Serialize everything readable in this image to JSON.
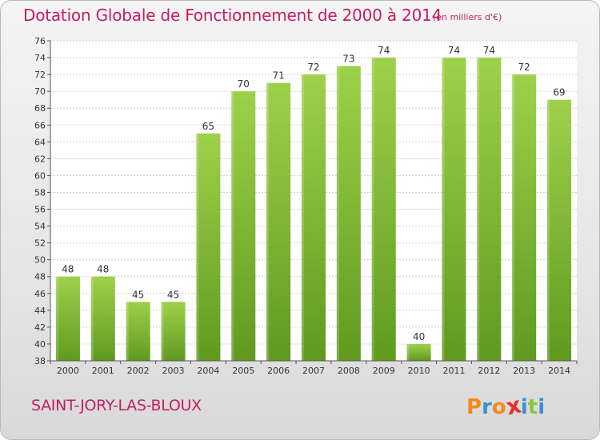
{
  "chart_title": "Dotation Globale de Fonctionnement de 2000 à 2014",
  "chart_subtitle": "(en milliers d'€)",
  "place_name": "SAINT-JORY-LAS-BLOUX",
  "brand": {
    "letters": [
      "P",
      "r",
      "o",
      "x",
      "i",
      "t",
      "i"
    ],
    "colors": [
      "#f08a1c",
      "#3a8fd6",
      "#f08a1c",
      "#e8302b",
      "#3a8fd6",
      "#8cc83c",
      "#3a8fd6"
    ]
  },
  "colors": {
    "bar_light": "#9ed14a",
    "bar_dark": "#5f9a1f",
    "accent": "#c41f5e",
    "grid": "#cfcfcf"
  },
  "chart_data": {
    "type": "bar",
    "categories": [
      "2000",
      "2001",
      "2002",
      "2003",
      "2004",
      "2005",
      "2006",
      "2007",
      "2008",
      "2009",
      "2010",
      "2011",
      "2012",
      "2013",
      "2014"
    ],
    "values": [
      48,
      48,
      45,
      45,
      65,
      70,
      71,
      72,
      73,
      74,
      40,
      74,
      74,
      72,
      69
    ],
    "title": "Dotation Globale de Fonctionnement de 2000 à 2014",
    "subtitle": "(en milliers d'€)",
    "ylim": [
      38,
      76
    ],
    "yticks": [
      38,
      40,
      42,
      44,
      46,
      48,
      50,
      52,
      54,
      56,
      58,
      60,
      62,
      64,
      66,
      68,
      70,
      72,
      74,
      76
    ],
    "grid": true,
    "data_labels": true
  }
}
